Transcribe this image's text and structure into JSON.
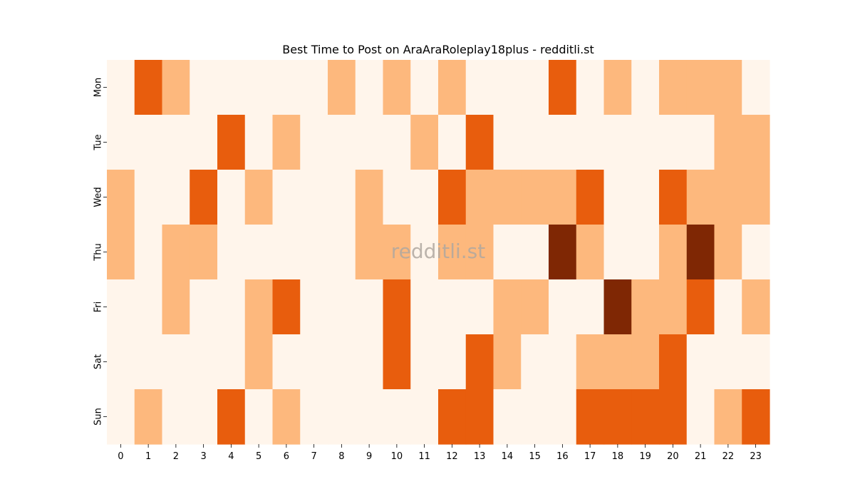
{
  "chart_data": {
    "type": "heatmap",
    "title": "Best Time to Post on AraAraRoleplay18plus - redditli.st",
    "watermark": "redditli.st",
    "x": [
      "0",
      "1",
      "2",
      "3",
      "4",
      "5",
      "6",
      "7",
      "8",
      "9",
      "10",
      "11",
      "12",
      "13",
      "14",
      "15",
      "16",
      "17",
      "18",
      "19",
      "20",
      "21",
      "22",
      "23"
    ],
    "y": [
      "Mon",
      "Tue",
      "Wed",
      "Thu",
      "Fri",
      "Sat",
      "Sun"
    ],
    "values": [
      [
        0,
        2,
        1,
        0,
        0,
        0,
        0,
        0,
        1,
        0,
        1,
        0,
        1,
        0,
        0,
        0,
        2,
        0,
        1,
        0,
        1,
        1,
        1,
        0
      ],
      [
        0,
        0,
        0,
        0,
        2,
        0,
        1,
        0,
        0,
        0,
        0,
        1,
        0,
        2,
        0,
        0,
        0,
        0,
        0,
        0,
        0,
        0,
        1,
        1
      ],
      [
        1,
        0,
        0,
        2,
        0,
        1,
        0,
        0,
        0,
        1,
        0,
        0,
        2,
        1,
        1,
        1,
        1,
        2,
        0,
        0,
        2,
        1,
        1,
        1
      ],
      [
        1,
        0,
        1,
        1,
        0,
        0,
        0,
        0,
        0,
        1,
        1,
        0,
        1,
        1,
        0,
        0,
        3,
        1,
        0,
        0,
        1,
        3,
        1,
        0
      ],
      [
        0,
        0,
        1,
        0,
        0,
        1,
        2,
        0,
        0,
        0,
        2,
        0,
        0,
        0,
        1,
        1,
        0,
        0,
        3,
        1,
        1,
        2,
        0,
        1
      ],
      [
        0,
        0,
        0,
        0,
        0,
        1,
        0,
        0,
        0,
        0,
        2,
        0,
        0,
        2,
        1,
        0,
        0,
        1,
        1,
        1,
        2,
        0,
        0,
        0
      ],
      [
        0,
        1,
        0,
        0,
        2,
        0,
        1,
        0,
        0,
        0,
        0,
        0,
        2,
        2,
        0,
        0,
        0,
        2,
        2,
        2,
        2,
        0,
        1,
        2
      ]
    ],
    "colorscale": [
      "#fff5eb",
      "#fdb87d",
      "#e85d0d",
      "#7f2704"
    ],
    "colorbar": false,
    "grid": false
  }
}
